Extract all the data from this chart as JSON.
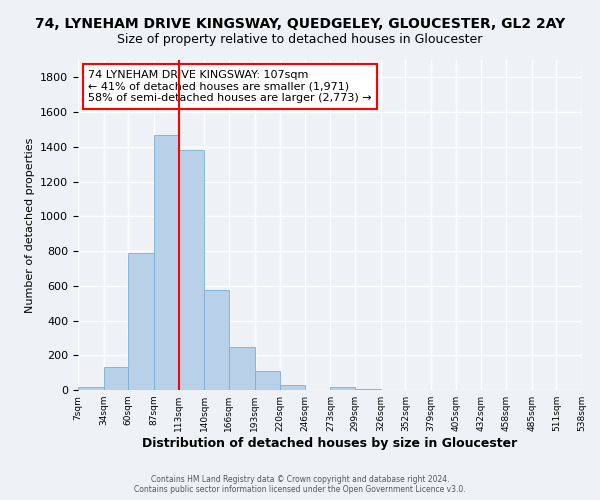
{
  "title": "74, LYNEHAM DRIVE KINGSWAY, QUEDGELEY, GLOUCESTER, GL2 2AY",
  "subtitle": "Size of property relative to detached houses in Gloucester",
  "xlabel": "Distribution of detached houses by size in Gloucester",
  "ylabel": "Number of detached properties",
  "bar_color": "#b8d0e8",
  "bar_edge_color": "#7aafd4",
  "bin_edges": [
    7,
    34,
    60,
    87,
    113,
    140,
    166,
    193,
    220,
    246,
    273,
    299,
    326,
    352,
    379,
    405,
    432,
    458,
    485,
    511,
    538
  ],
  "bar_heights": [
    15,
    130,
    790,
    1470,
    1380,
    575,
    250,
    110,
    30,
    0,
    20,
    5,
    0,
    0,
    0,
    0,
    0,
    0,
    0,
    0
  ],
  "red_line_x": 113,
  "annotation_line1": "74 LYNEHAM DRIVE KINGSWAY: 107sqm",
  "annotation_line2": "← 41% of detached houses are smaller (1,971)",
  "annotation_line3": "58% of semi-detached houses are larger (2,773) →",
  "ylim": [
    0,
    1900
  ],
  "yticks": [
    0,
    200,
    400,
    600,
    800,
    1000,
    1200,
    1400,
    1600,
    1800
  ],
  "footer1": "Contains HM Land Registry data © Crown copyright and database right 2024.",
  "footer2": "Contains public sector information licensed under the Open Government Licence v3.0.",
  "background_color": "#eef2f7",
  "grid_color": "#ffffff"
}
